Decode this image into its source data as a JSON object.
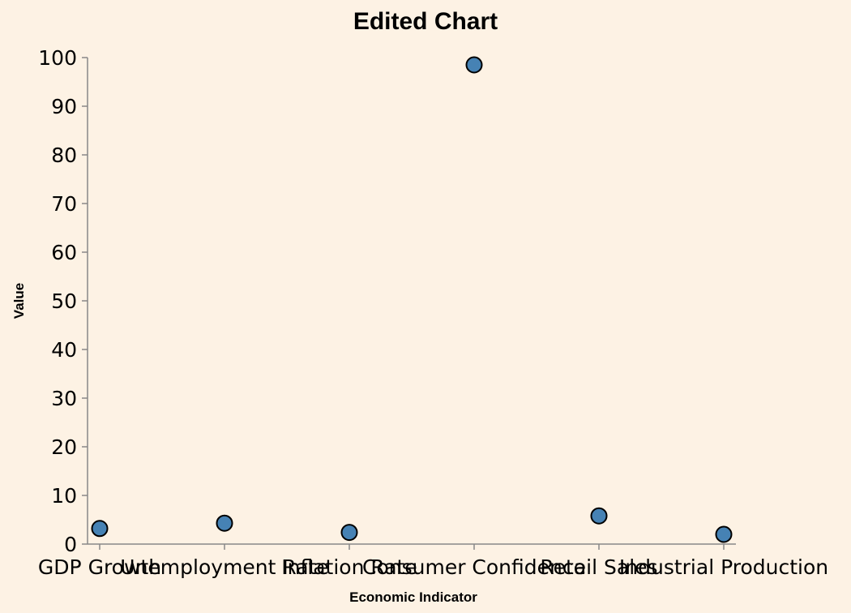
{
  "chart_data": {
    "type": "scatter",
    "title": "Edited Chart",
    "xlabel": "Economic Indicator",
    "ylabel": "Value",
    "categories": [
      "GDP Growth",
      "Unemployment Rate",
      "Inflation Rate",
      "Consumer Confidence",
      "Retail Sales",
      "Industrial Production"
    ],
    "values": [
      3.2,
      4.3,
      2.4,
      98.5,
      5.8,
      2.0
    ],
    "ylim": [
      0,
      100
    ],
    "yticks": [
      0,
      10,
      20,
      30,
      40,
      50,
      60,
      70,
      80,
      90,
      100
    ],
    "grid": false,
    "point_color": "#4682b4",
    "background": "#fdf2e4"
  }
}
